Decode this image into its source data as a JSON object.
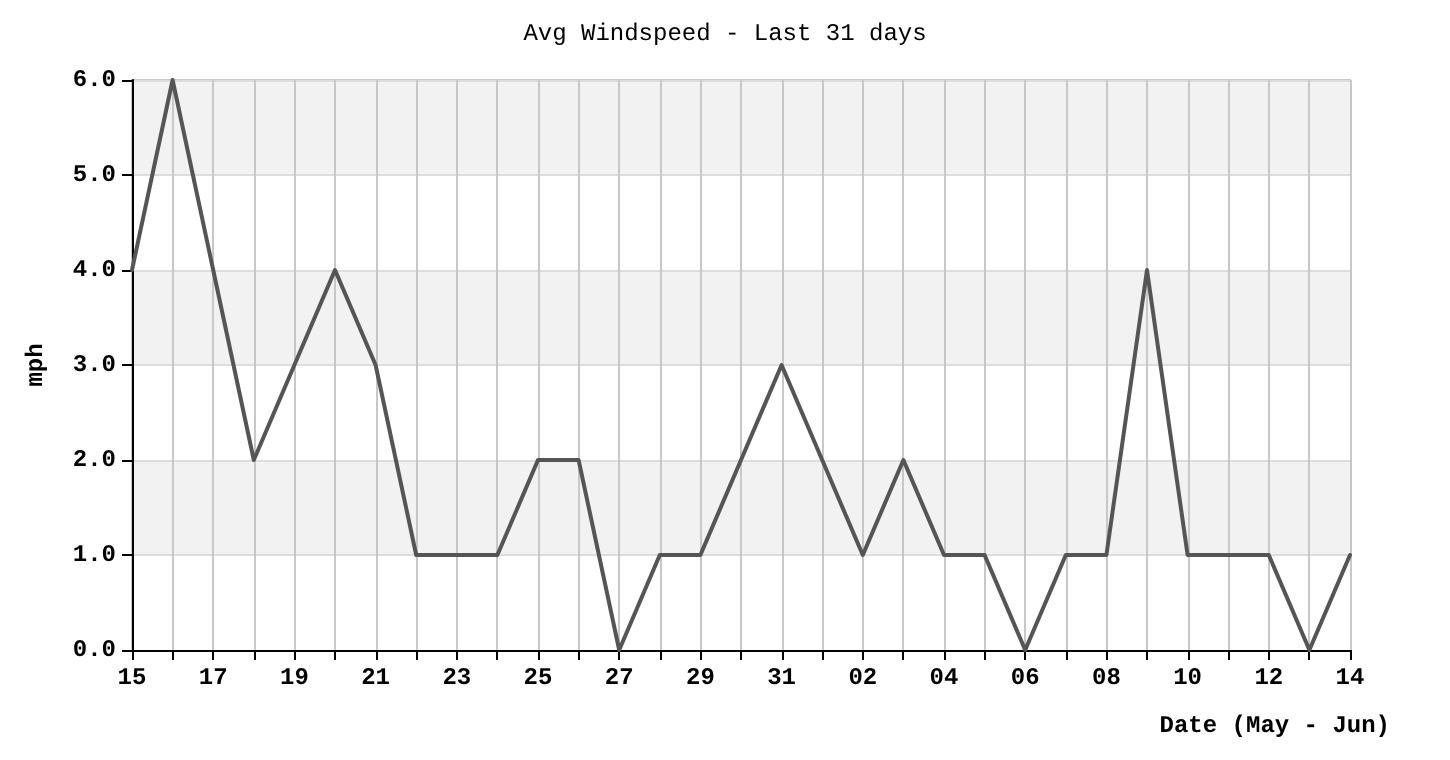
{
  "chart_data": {
    "type": "line",
    "title": "Avg Windspeed - Last 31 days",
    "xlabel": "Date (May - Jun)",
    "ylabel": "mph",
    "categories": [
      "15",
      null,
      "17",
      null,
      "19",
      null,
      "21",
      null,
      "23",
      null,
      "25",
      null,
      "27",
      null,
      "29",
      null,
      "31",
      null,
      "02",
      null,
      "04",
      null,
      "06",
      null,
      "08",
      null,
      "10",
      null,
      "12",
      null,
      "14"
    ],
    "series": [
      {
        "color": "#555555",
        "values": [
          4,
          6,
          4,
          2,
          3,
          4,
          3,
          1,
          1,
          1,
          2,
          2,
          0,
          1,
          1,
          2,
          3,
          2,
          1,
          2,
          1,
          1,
          0,
          1,
          1,
          4,
          1,
          1,
          1,
          0,
          1
        ]
      }
    ],
    "ylim": [
      0,
      6
    ],
    "yticks": [
      {
        "value": 0,
        "label": "0.0"
      },
      {
        "value": 1,
        "label": "1.0"
      },
      {
        "value": 2,
        "label": "2.0"
      },
      {
        "value": 3,
        "label": "3.0"
      },
      {
        "value": 4,
        "label": "4.0"
      },
      {
        "value": 5,
        "label": "5.0"
      },
      {
        "value": 6,
        "label": "6.0"
      }
    ],
    "grid": true,
    "marker": "none",
    "line_style": "solid"
  }
}
